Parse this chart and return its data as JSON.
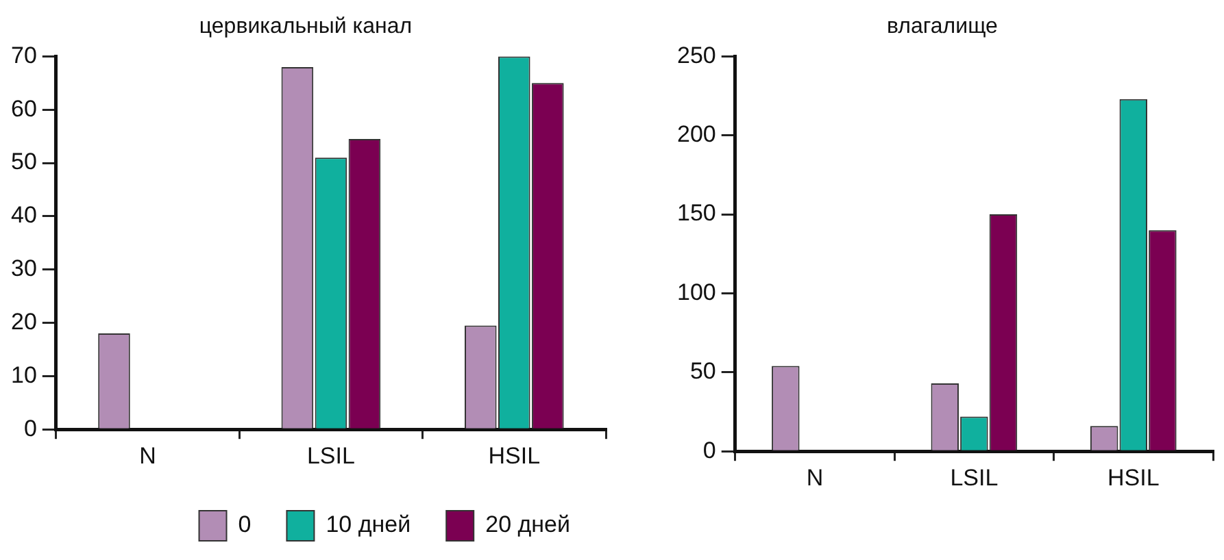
{
  "chart_data": [
    {
      "type": "bar",
      "title": "цервикальный канал",
      "categories": [
        "N",
        "LSIL",
        "HSIL"
      ],
      "series": [
        {
          "name": "0",
          "color": "#b28db5",
          "values": [
            18,
            68,
            19.5
          ]
        },
        {
          "name": "10 дней",
          "color": "#10b09e",
          "values": [
            null,
            51,
            70
          ]
        },
        {
          "name": "20 дней",
          "color": "#7b0052",
          "values": [
            null,
            54.5,
            65
          ]
        }
      ],
      "ylim": [
        0,
        70
      ],
      "yticks": [
        0,
        10,
        20,
        30,
        40,
        50,
        60,
        70
      ],
      "grid": false,
      "legend": "bottom"
    },
    {
      "type": "bar",
      "title": "влагалище",
      "categories": [
        "N",
        "LSIL",
        "HSIL"
      ],
      "series": [
        {
          "color": "#b28db5",
          "values": [
            54,
            43,
            16
          ]
        },
        {
          "color": "#10b09e",
          "values": [
            null,
            22,
            223
          ]
        },
        {
          "color": "#7b0052",
          "values": [
            null,
            150,
            140
          ]
        }
      ],
      "ylim": [
        0,
        250
      ],
      "yticks": [
        0,
        50,
        100,
        150,
        200,
        250
      ],
      "grid": false
    }
  ]
}
